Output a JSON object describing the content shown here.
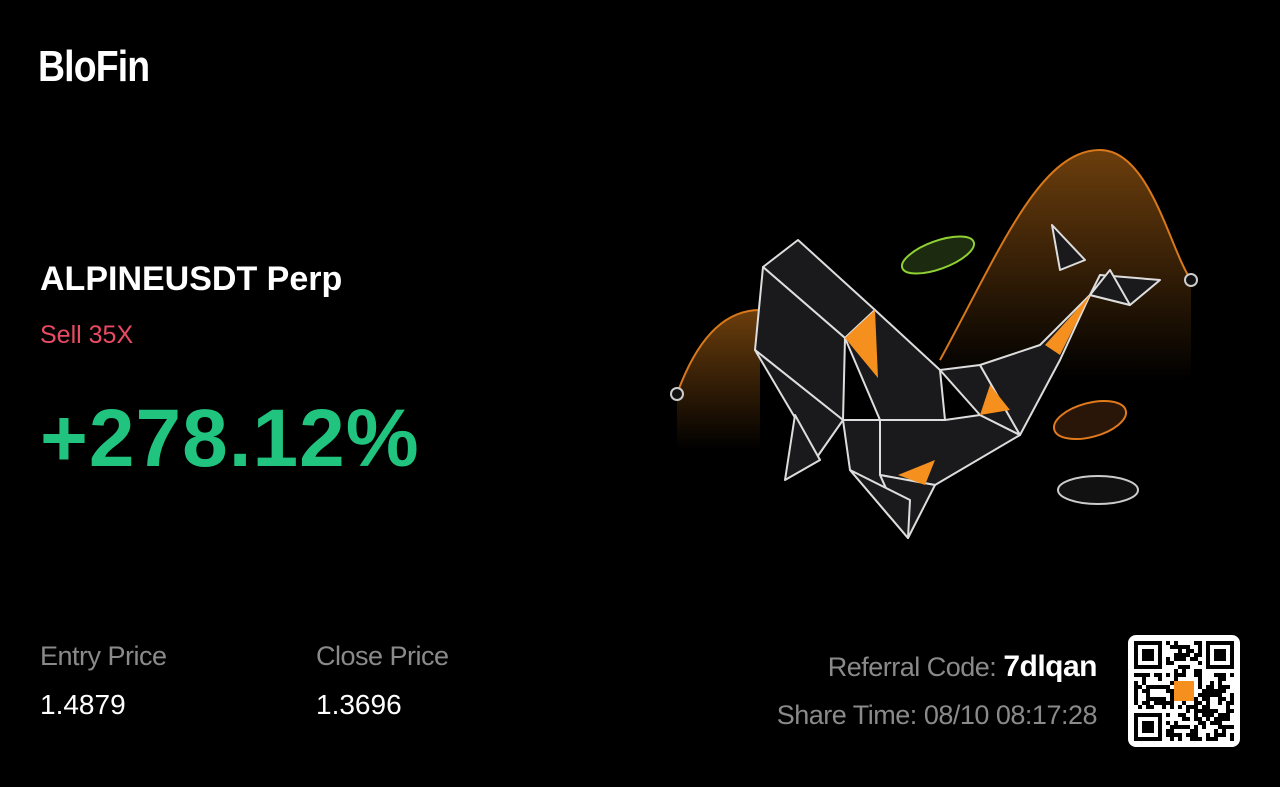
{
  "logo": "BloFin",
  "position": {
    "pair": "ALPINEUSDT Perp",
    "side": "Sell 35X",
    "pnl": "+278.12%"
  },
  "prices": {
    "entry_label": "Entry Price",
    "entry_value": "1.4879",
    "close_label": "Close Price",
    "close_value": "1.3696"
  },
  "share": {
    "referral_label": "Referral Code:",
    "referral_code": "7dlqan",
    "time_label": "Share Time:",
    "time_value": "08/10 08:17:28"
  }
}
